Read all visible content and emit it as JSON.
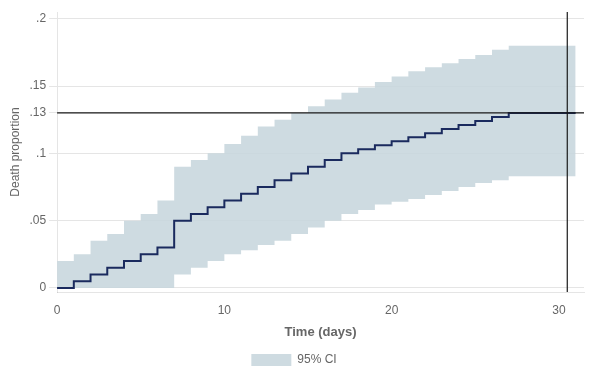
{
  "chart_data": {
    "type": "step",
    "xlabel": "Time (days)",
    "ylabel": "Death proportion",
    "x": [
      0,
      1,
      2,
      3,
      4,
      5,
      6,
      7,
      8,
      9,
      10,
      11,
      12,
      13,
      14,
      15,
      16,
      17,
      18,
      19,
      20,
      21,
      22,
      23,
      24,
      25,
      26,
      27,
      28,
      29,
      30,
      31
    ],
    "series": [
      {
        "type": "band",
        "name": "95% CI",
        "color": "#c5d5dc",
        "lower": [
          0,
          0,
          0,
          0,
          0,
          0,
          0,
          0,
          0.01,
          0.015,
          0.02,
          0.025,
          0.028,
          0.032,
          0.035,
          0.04,
          0.045,
          0.05,
          0.055,
          0.058,
          0.062,
          0.064,
          0.066,
          0.069,
          0.072,
          0.075,
          0.078,
          0.08,
          0.083,
          0.083,
          0.083,
          0.083
        ],
        "upper": [
          0,
          0.02,
          0.025,
          0.035,
          0.04,
          0.05,
          0.055,
          0.065,
          0.09,
          0.095,
          0.1,
          0.107,
          0.113,
          0.12,
          0.125,
          0.13,
          0.135,
          0.14,
          0.145,
          0.149,
          0.153,
          0.157,
          0.161,
          0.164,
          0.167,
          0.17,
          0.173,
          0.177,
          0.18,
          0.18,
          0.18,
          0.18
        ]
      },
      {
        "type": "step",
        "color": "#1a2a5e",
        "values": [
          0,
          0,
          0.005,
          0.01,
          0.015,
          0.02,
          0.025,
          0.03,
          0.05,
          0.055,
          0.06,
          0.065,
          0.07,
          0.075,
          0.08,
          0.085,
          0.09,
          0.095,
          0.1,
          0.103,
          0.106,
          0.109,
          0.112,
          0.115,
          0.118,
          0.121,
          0.124,
          0.127,
          0.13,
          0.13,
          0.13,
          0.13
        ]
      }
    ],
    "annotations": [
      {
        "type": "hline",
        "y": 0.13,
        "color": "#1a1a1a"
      },
      {
        "type": "vline",
        "x": 30.5,
        "color": "#1a1a1a"
      }
    ],
    "xlim": [
      0,
      31.5
    ],
    "ylim": [
      -0.003,
      0.205
    ],
    "xticks": [
      0,
      10,
      20,
      30
    ],
    "yticks": [
      0,
      {
        "value": 0.05,
        "label": ".05"
      },
      {
        "value": 0.1,
        "label": ".1"
      },
      {
        "value": 0.13,
        "label": ".13"
      },
      {
        "value": 0.15,
        "label": ".15"
      },
      {
        "value": 0.2,
        "label": ".2"
      }
    ],
    "grid": "y",
    "legend": "bottom"
  }
}
